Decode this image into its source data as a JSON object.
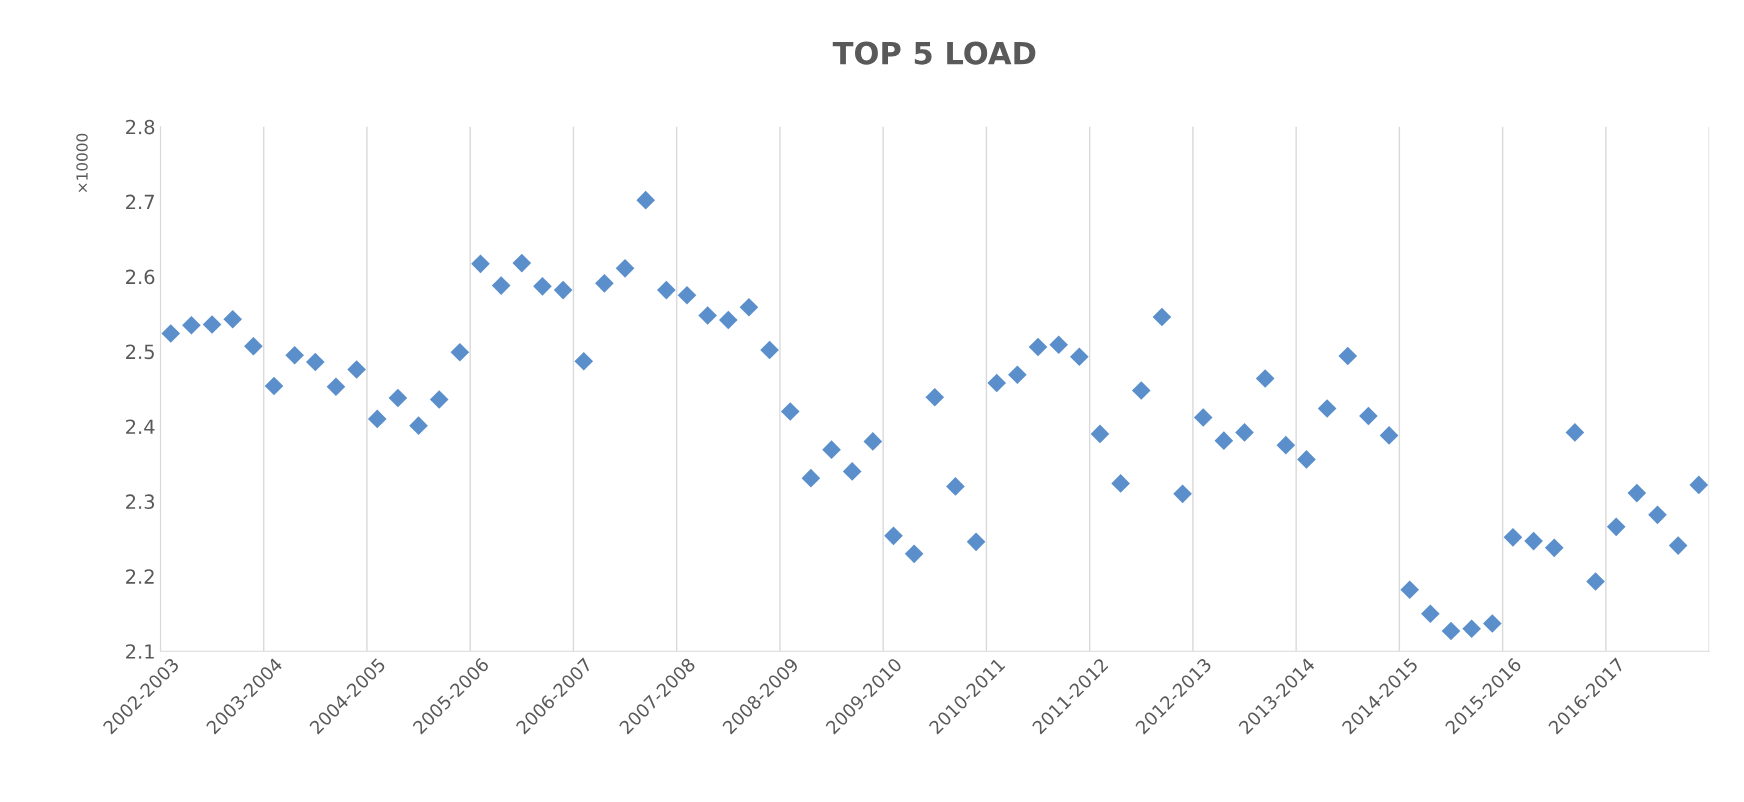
{
  "chart_data": {
    "type": "scatter",
    "title": "TOP 5 LOAD",
    "ylabel": "×10000",
    "categories": [
      "2002-2003",
      null,
      null,
      null,
      null,
      "2003-2004",
      null,
      null,
      null,
      null,
      "2004-2005",
      null,
      null,
      null,
      null,
      "2005-2006",
      null,
      null,
      null,
      null,
      "2006-2007",
      null,
      null,
      null,
      null,
      "2007-2008",
      null,
      null,
      null,
      null,
      "2008-2009",
      null,
      null,
      null,
      null,
      "2009-2010",
      null,
      null,
      null,
      null,
      "2010-2011",
      null,
      null,
      null,
      null,
      "2011-2012",
      null,
      null,
      null,
      null,
      "2012-2013",
      null,
      null,
      null,
      null,
      "2013-2014",
      null,
      null,
      null,
      null,
      "2014-2015",
      null,
      null,
      null,
      null,
      "2015-2016",
      null,
      null,
      null,
      null,
      "2016-2017",
      null,
      null,
      null,
      null
    ],
    "series": [
      {
        "color": "#5b8fcb",
        "values": [
          2.524,
          2.535,
          2.536,
          2.543,
          2.507,
          2.454,
          2.495,
          2.486,
          2.453,
          2.476,
          2.41,
          2.438,
          2.401,
          2.436,
          2.499,
          2.617,
          2.588,
          2.618,
          2.587,
          2.582,
          2.487,
          2.591,
          2.611,
          2.702,
          2.582,
          2.575,
          2.548,
          2.542,
          2.559,
          2.502,
          2.42,
          2.331,
          2.369,
          2.34,
          2.38,
          2.254,
          2.23,
          2.439,
          2.32,
          2.246,
          2.458,
          2.469,
          2.506,
          2.509,
          2.493,
          2.39,
          2.324,
          2.448,
          2.546,
          2.31,
          2.412,
          2.381,
          2.392,
          2.464,
          2.375,
          2.356,
          2.424,
          2.494,
          2.414,
          2.388,
          2.182,
          2.15,
          2.127,
          2.13,
          2.137,
          2.252,
          2.247,
          2.238,
          2.392,
          2.193,
          2.266,
          2.311,
          2.282,
          2.241,
          2.322
        ]
      }
    ],
    "ylim": [
      2.1,
      2.8
    ],
    "yticks": [
      2.1,
      2.2,
      2.3,
      2.4,
      2.5,
      2.6,
      2.7,
      2.8
    ],
    "grid": "x",
    "marker": "diamond",
    "legend": false
  }
}
